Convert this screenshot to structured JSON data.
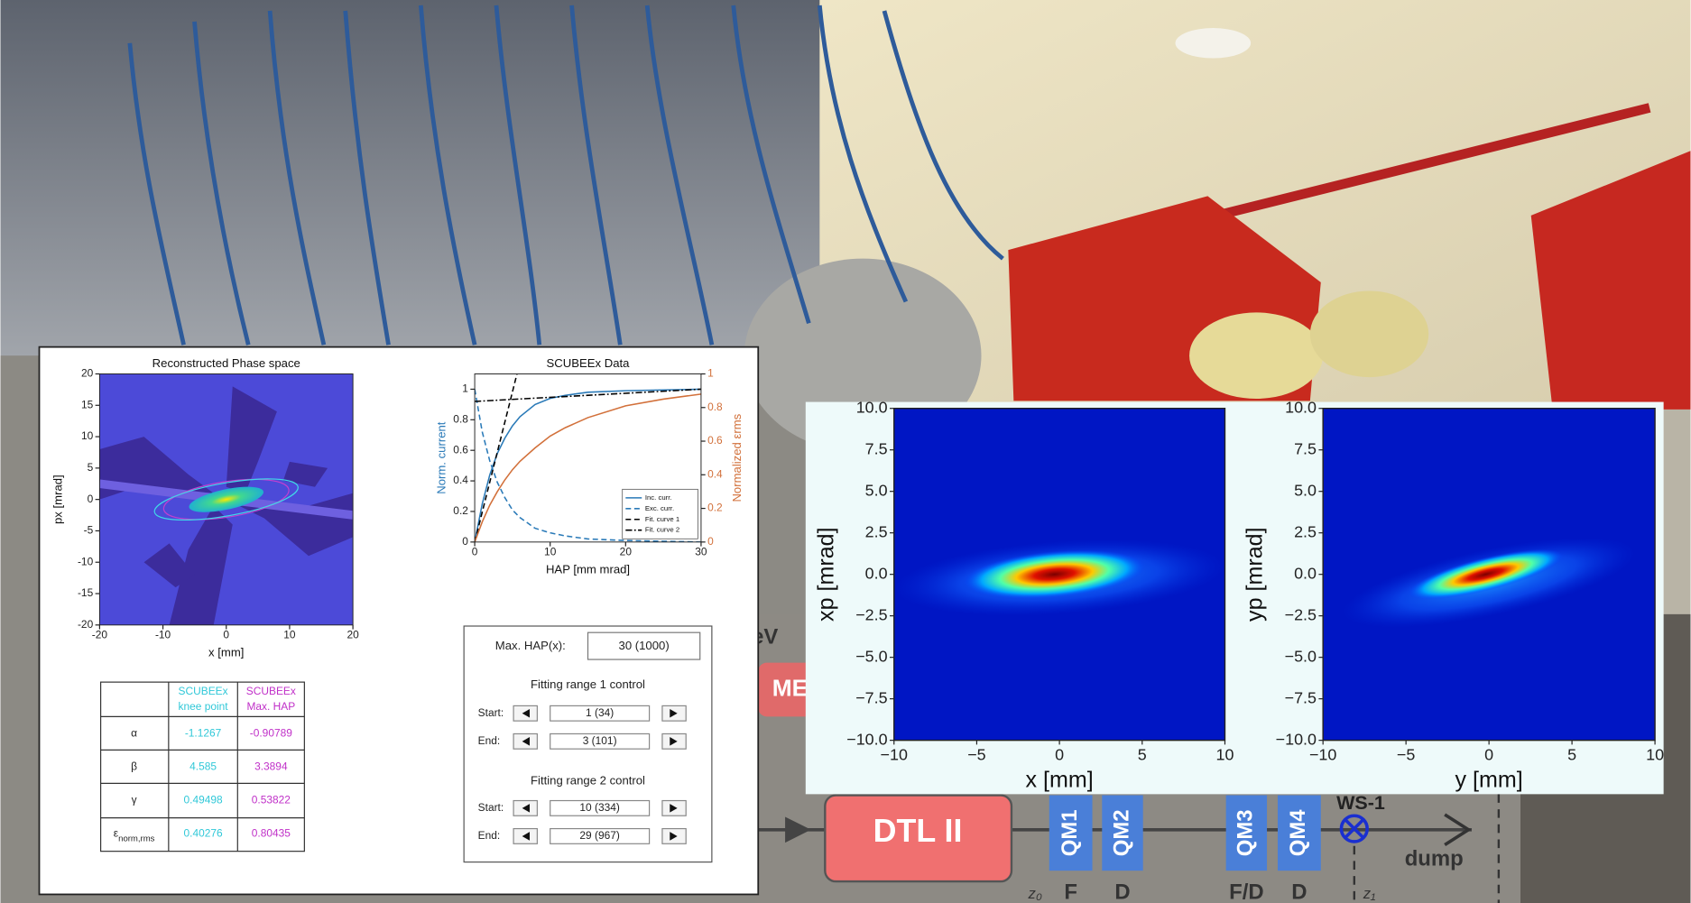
{
  "chart_data": [
    {
      "type": "contour",
      "title": "Reconstructed Phase space",
      "x_label": "x [mm]",
      "y_label": "px [mrad]",
      "xlim": [
        -20,
        20
      ],
      "ylim": [
        -20,
        20
      ],
      "xticks": [
        -20,
        -10,
        0,
        10,
        20
      ],
      "yticks": [
        -20,
        -15,
        -10,
        -5,
        0,
        5,
        10,
        15,
        20
      ]
    },
    {
      "type": "line",
      "title": "SCUBEEx Data",
      "x_label": "HAP [mm mrad]",
      "y_label": "Norm. current",
      "y2_label": "Normalized εrms",
      "xlim": [
        0,
        30
      ],
      "xticks": [
        0,
        10,
        20,
        30
      ],
      "ylim": [
        0,
        1.1
      ],
      "yticks": [
        0,
        0.2,
        0.4,
        0.6,
        0.8,
        1
      ],
      "y2lim": [
        0,
        1
      ],
      "y2ticks": [
        0,
        0.2,
        0.4,
        0.6,
        0.8,
        1
      ],
      "legend": "lower right",
      "series": [
        {
          "name": "Inc. curr.",
          "color": "#2a7ab8",
          "line_style": "solid",
          "x": [
            0,
            1,
            2,
            3,
            4,
            5,
            6,
            8,
            10,
            12,
            15,
            20,
            25,
            30
          ],
          "values": [
            0,
            0.25,
            0.44,
            0.58,
            0.68,
            0.76,
            0.82,
            0.9,
            0.94,
            0.96,
            0.98,
            0.99,
            0.995,
            1.0
          ]
        },
        {
          "name": "Exc. curr.",
          "color": "#2a7ab8",
          "line_style": "dashed",
          "x": [
            0,
            1,
            2,
            3,
            4,
            5,
            6,
            8,
            10,
            12,
            15,
            20,
            25,
            30
          ],
          "values": [
            1,
            0.72,
            0.53,
            0.39,
            0.29,
            0.21,
            0.16,
            0.09,
            0.06,
            0.04,
            0.02,
            0.01,
            0.005,
            0
          ]
        },
        {
          "name": "Fit. curve 1",
          "color": "#000000",
          "line_style": "dashed",
          "x": [
            0,
            5.6
          ],
          "values": [
            0,
            1.1
          ]
        },
        {
          "name": "Fit. curve 2",
          "color": "#000000",
          "line_style": "dashdot",
          "x": [
            0,
            30
          ],
          "values": [
            0.92,
            1.0
          ]
        },
        {
          "color": "#d2703a",
          "line_style": "solid",
          "axis": "y2",
          "x": [
            0,
            1,
            2,
            3,
            4,
            5,
            6,
            8,
            10,
            12,
            15,
            20,
            25,
            30
          ],
          "values": [
            0,
            0.12,
            0.22,
            0.3,
            0.37,
            0.43,
            0.48,
            0.56,
            0.63,
            0.68,
            0.74,
            0.81,
            0.85,
            0.88
          ]
        }
      ]
    },
    {
      "type": "heatmap",
      "x_label": "x [mm]",
      "y_label": "xp [mrad]",
      "xlim": [
        -10,
        10
      ],
      "ylim": [
        -10,
        10
      ],
      "xticks": [
        {
          "value": -10,
          "label": "−10"
        },
        {
          "value": -5,
          "label": "−5"
        },
        0,
        5,
        10
      ],
      "yticks": [
        {
          "value": -10,
          "label": "−10.0"
        },
        {
          "value": -7.5,
          "label": "−7.5"
        },
        {
          "value": -5,
          "label": "−5.0"
        },
        {
          "value": -2.5,
          "label": "−2.5"
        },
        {
          "value": 0,
          "label": "0.0"
        },
        {
          "value": 2.5,
          "label": "2.5"
        },
        {
          "value": 5,
          "label": "5.0"
        },
        {
          "value": 7.5,
          "label": "7.5"
        },
        {
          "value": 10,
          "label": "10.0"
        }
      ]
    },
    {
      "type": "heatmap",
      "x_label": "y [mm]",
      "y_label": "yp [mrad]",
      "xlim": [
        -10,
        10
      ],
      "ylim": [
        -10,
        10
      ],
      "xticks": [
        {
          "value": -10,
          "label": "−10"
        },
        {
          "value": -5,
          "label": "−5"
        },
        0,
        5,
        10
      ],
      "yticks": [
        {
          "value": -10,
          "label": "−10.0"
        },
        {
          "value": -7.5,
          "label": "−7.5"
        },
        {
          "value": -5,
          "label": "−5.0"
        },
        {
          "value": -2.5,
          "label": "−2.5"
        },
        {
          "value": 0,
          "label": "0.0"
        },
        {
          "value": 2.5,
          "label": "2.5"
        },
        {
          "value": 5,
          "label": "5.0"
        },
        {
          "value": 7.5,
          "label": "7.5"
        },
        {
          "value": 10,
          "label": "10.0"
        }
      ]
    }
  ],
  "table": {
    "header": [
      [
        "SCUBEEx",
        "knee point"
      ],
      [
        "SCUBEEx",
        "Max. HAP"
      ]
    ],
    "rows": [
      {
        "label": "α",
        "values": [
          "-1.1267",
          "-0.90789"
        ]
      },
      {
        "label": "β",
        "values": [
          "4.585",
          "3.3894"
        ]
      },
      {
        "label": "γ",
        "values": [
          "0.49498",
          "0.53822"
        ]
      },
      {
        "label": "ε",
        "sub": "norm,rms",
        "values": [
          "0.40276",
          "0.80435"
        ]
      }
    ]
  },
  "controls": {
    "max_hap_label": "Max. HAP(x):",
    "max_hap_value": "30 (1000)",
    "ranges": [
      {
        "title": "Fitting range 1 control",
        "start_label": "Start:",
        "start": "1 (34)",
        "end_label": "End:",
        "end": "3 (101)"
      },
      {
        "title": "Fitting range 2 control",
        "start_label": "Start:",
        "start": "10 (334)",
        "end_label": "End:",
        "end": "29 (967)"
      }
    ]
  },
  "diagram": {
    "dtl": "DTL II",
    "quads": [
      "QM1",
      "QM2",
      "QM3",
      "QM4"
    ],
    "polarities": [
      "F",
      "D",
      "F/D",
      "D"
    ],
    "wire_scanner": "WS-1",
    "dump": "dump",
    "positions": [
      "z₀",
      "z₁"
    ],
    "partial_label": "eV",
    "partial_box": "ME"
  }
}
